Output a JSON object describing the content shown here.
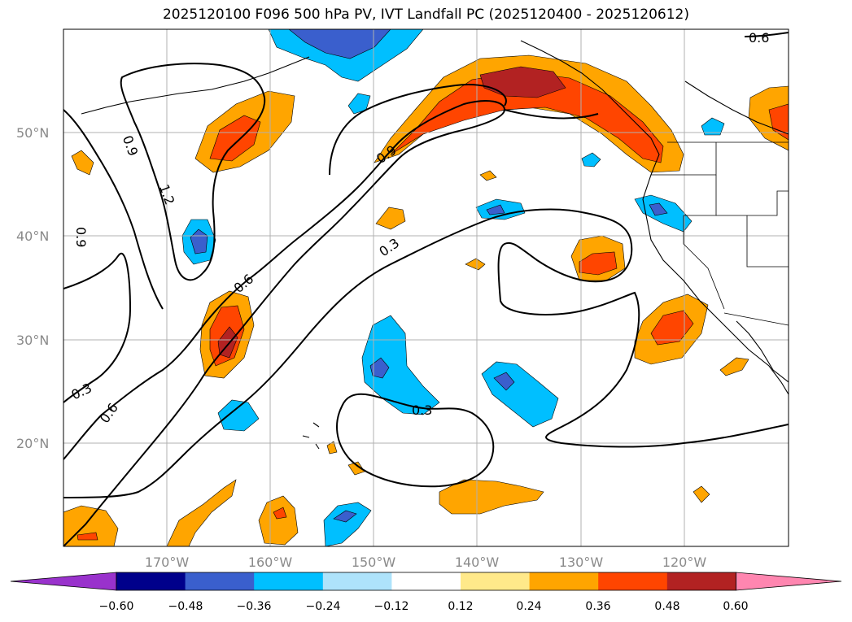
{
  "title": "2025120100 F096 500 hPa PV, IVT Landfall PC (2025120400 - 2025120612)",
  "map": {
    "lat_labels": [
      "50°N",
      "40°N",
      "30°N",
      "20°N"
    ],
    "lon_labels": [
      "170°W",
      "160°W",
      "150°W",
      "140°W",
      "130°W",
      "120°W"
    ],
    "contour_labels": [
      "0.9",
      "1.2",
      "0.6",
      "0.3",
      "0.9",
      "0.3",
      "0.6",
      "0.3",
      "0.6",
      "0.3",
      "0.9",
      "0.6"
    ]
  },
  "colorbar": {
    "colors": [
      "#9932cc",
      "#00008b",
      "#3a5fcd",
      "#00bfff",
      "#aee3fb",
      "#ffffff",
      "#ffe98a",
      "#ffa500",
      "#ff4500",
      "#b22222",
      "#ff86b0"
    ],
    "ticks": [
      "−0.60",
      "−0.48",
      "−0.36",
      "−0.24",
      "−0.12",
      "0.12",
      "0.24",
      "0.36",
      "0.48",
      "0.60"
    ]
  }
}
